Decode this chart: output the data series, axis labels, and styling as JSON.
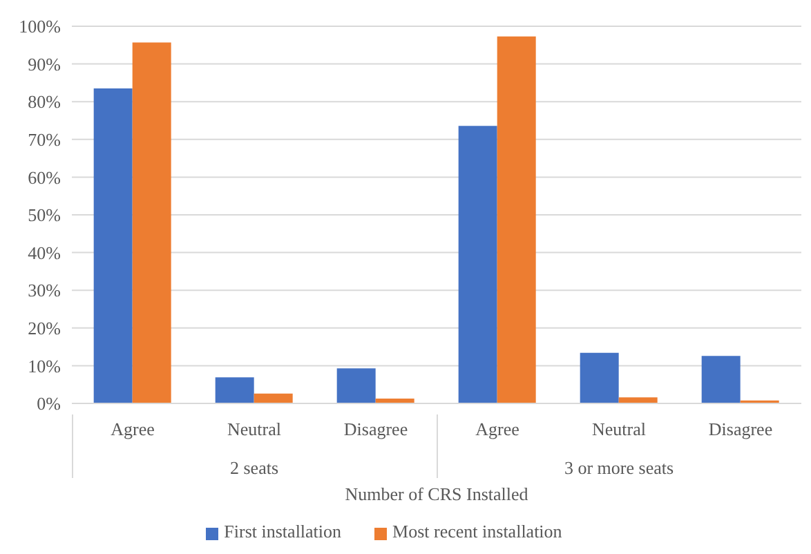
{
  "chart_data": {
    "type": "bar",
    "xlabel": "Number of CRS Installed",
    "categories": [
      "Agree",
      "Neutral",
      "Disagree",
      "Agree",
      "Neutral",
      "Disagree"
    ],
    "annotations": [
      "2 seats",
      "3 or more seats"
    ],
    "series": [
      {
        "name": "First installation",
        "color": "#4472c4",
        "values": [
          83.5,
          6.9,
          9.3,
          73.6,
          13.4,
          12.6
        ]
      },
      {
        "name": "Most recent installation",
        "color": "#ed7d31",
        "values": [
          95.7,
          2.6,
          1.3,
          97.3,
          1.6,
          0.8
        ]
      }
    ],
    "ylim": [
      0,
      100
    ],
    "yticks": [
      {
        "value": 0,
        "label": "0%"
      },
      {
        "value": 10,
        "label": "10%"
      },
      {
        "value": 20,
        "label": "20%"
      },
      {
        "value": 30,
        "label": "30%"
      },
      {
        "value": 40,
        "label": "40%"
      },
      {
        "value": 50,
        "label": "50%"
      },
      {
        "value": 60,
        "label": "60%"
      },
      {
        "value": 70,
        "label": "70%"
      },
      {
        "value": 80,
        "label": "80%"
      },
      {
        "value": 90,
        "label": "90%"
      },
      {
        "value": 100,
        "label": "100%"
      }
    ],
    "grid": "y",
    "legend": "bottom"
  }
}
